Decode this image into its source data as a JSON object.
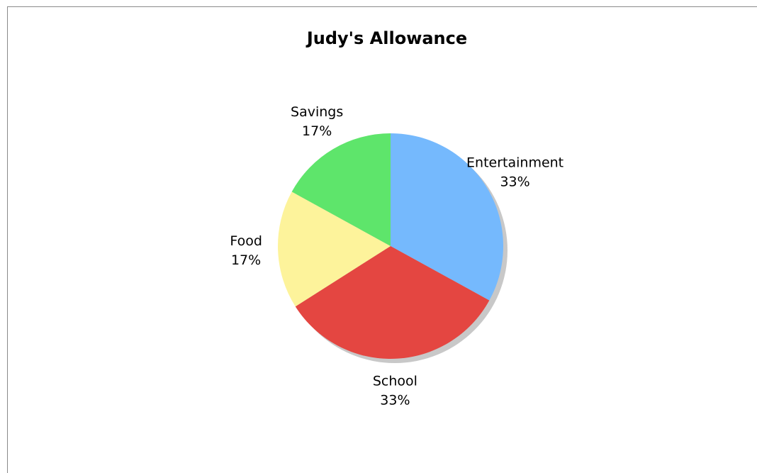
{
  "chart_data": {
    "type": "pie",
    "title": "Judy's Allowance",
    "slices": [
      {
        "label": "Entertainment",
        "value": 33,
        "percent_label": "33%",
        "color": "#75b9fd"
      },
      {
        "label": "School",
        "value": 33,
        "percent_label": "33%",
        "color": "#e44641"
      },
      {
        "label": "Food",
        "value": 17,
        "percent_label": "17%",
        "color": "#fdf39b"
      },
      {
        "label": "Savings",
        "value": 17,
        "percent_label": "17%",
        "color": "#5ee56b"
      }
    ],
    "start_angle_deg": 0,
    "direction": "clockwise",
    "shadow": true,
    "legend": "none"
  }
}
